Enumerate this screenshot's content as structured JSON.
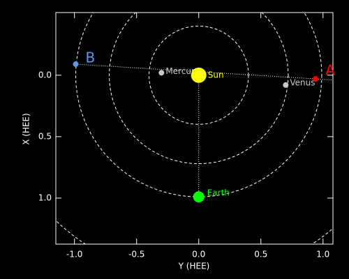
{
  "chart_data": {
    "type": "scatter",
    "xlabel": "Y (HEE)",
    "ylabel": "X (HEE)",
    "xlim": [
      -1.15,
      1.08
    ],
    "ylim": [
      -0.51,
      1.375
    ],
    "y_inverted": true,
    "xticks": [
      {
        "value": -1,
        "label": "-1.0"
      },
      {
        "value": -0.5,
        "label": "-0.5"
      },
      {
        "value": 0,
        "label": "0.0"
      },
      {
        "value": 0.5,
        "label": "0.5"
      },
      {
        "value": 1,
        "label": "1.0"
      }
    ],
    "yticks": [
      {
        "value": 0,
        "label": "0.0"
      },
      {
        "value": 0.5,
        "label": "0.5"
      },
      {
        "value": 1,
        "label": "1.0"
      }
    ],
    "orbits": [
      0.4,
      0.72,
      0.99,
      1.65
    ],
    "points": [
      {
        "label": "Sun",
        "x": 0,
        "y": 0,
        "color": "#ffff00"
      },
      {
        "label": "Mercury",
        "x": -0.3,
        "y": -0.02,
        "color": "#c8c8c8"
      },
      {
        "label": "Venus",
        "x": 0.7,
        "y": 0.08,
        "color": "#c8c8c8"
      },
      {
        "label": "Earth",
        "x": 0,
        "y": 0.99,
        "color": "#00ff00"
      },
      {
        "label": "A",
        "x": 0.94,
        "y": 0.03,
        "color": "#ff0000"
      },
      {
        "label": "B",
        "x": -0.99,
        "y": -0.09,
        "color": "#6495ed"
      }
    ]
  }
}
